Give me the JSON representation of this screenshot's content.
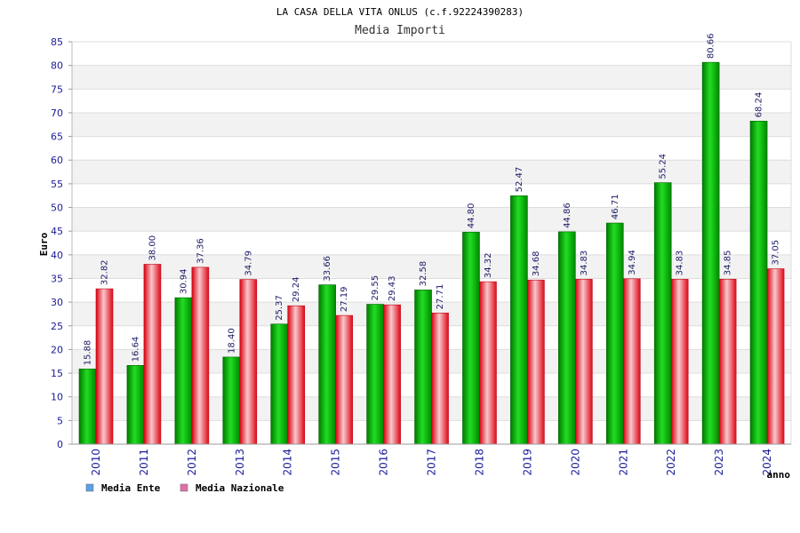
{
  "chart_data": {
    "type": "bar",
    "title": "LA CASA DELLA VITA ONLUS (c.f.92224390283)",
    "subtitle": "Media Importi",
    "xlabel": "anno",
    "ylabel": "Euro",
    "ylim": [
      0,
      85
    ],
    "yticks": [
      0,
      5,
      10,
      15,
      20,
      25,
      30,
      35,
      40,
      45,
      50,
      55,
      60,
      65,
      70,
      75,
      80,
      85
    ],
    "categories": [
      "2010",
      "2011",
      "2012",
      "2013",
      "2014",
      "2015",
      "2016",
      "2017",
      "2018",
      "2019",
      "2020",
      "2021",
      "2022",
      "2023",
      "2024"
    ],
    "series": [
      {
        "name": "Media Ente",
        "color": "#00cc00",
        "values": [
          15.88,
          16.64,
          30.94,
          18.4,
          25.37,
          33.66,
          29.55,
          32.58,
          44.8,
          52.47,
          44.86,
          46.71,
          55.24,
          80.66,
          68.24
        ],
        "labels": [
          "15.88",
          "16.64",
          "30.94",
          "18.40",
          "25.37",
          "33.66",
          "29.55",
          "32.58",
          "44.80",
          "52.47",
          "44.86",
          "46.71",
          "55.24",
          "80.66",
          "68.24"
        ]
      },
      {
        "name": "Media Nazionale",
        "color": "#e8202a",
        "values": [
          32.82,
          38.0,
          37.36,
          34.79,
          29.24,
          27.19,
          29.43,
          27.71,
          34.32,
          34.68,
          34.83,
          34.94,
          34.83,
          34.85,
          37.05
        ],
        "labels": [
          "32.82",
          "38.00",
          "37.36",
          "34.79",
          "29.24",
          "27.19",
          "29.43",
          "27.71",
          "34.32",
          "34.68",
          "34.83",
          "34.94",
          "34.83",
          "34.85",
          "37.05"
        ]
      }
    ],
    "legend": {
      "placement": "bottom-left",
      "items": [
        {
          "label": "Media Ente",
          "color": "#5aa0e6"
        },
        {
          "label": "Media Nazionale",
          "color": "#e070a8"
        }
      ]
    },
    "grid": true,
    "grid_band_color": "#f2f2f2"
  }
}
